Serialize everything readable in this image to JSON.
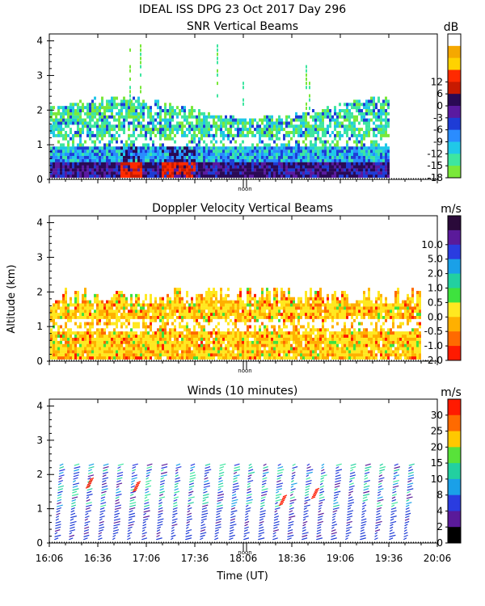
{
  "header": {
    "title": "IDEAL ISS DPG  23 Oct 2017 Day 296"
  },
  "x_axis": {
    "ticks": [
      "16:06",
      "16:36",
      "17:06",
      "17:36",
      "18:06",
      "18:36",
      "19:06",
      "19:36",
      "20:06"
    ],
    "label": "Time (UT)",
    "noon_label": "noon",
    "range_minutes": [
      966,
      1206
    ],
    "noon_minute": 1087
  },
  "y_axis": {
    "label": "Altitude (km)",
    "ticks": [
      "0",
      "1",
      "2",
      "3",
      "4"
    ],
    "range_km": [
      0,
      4.2
    ]
  },
  "chart_data": [
    {
      "type": "heatmap",
      "title": "SNR Vertical Beams",
      "colorbar": {
        "unit": "dB",
        "labels": [
          "12",
          "6",
          "0",
          "-3",
          "-6",
          "-9",
          "-12",
          "-15",
          "-18"
        ],
        "colors": [
          "#ffffff",
          "#f5a800",
          "#ffd200",
          "#ff2a00",
          "#c81a00",
          "#2a0a55",
          "#5a1aa0",
          "#1e3cd6",
          "#2a8cff",
          "#20c8e8",
          "#3ee6a0",
          "#7ae83a"
        ]
      }
    },
    {
      "type": "heatmap",
      "title": "Doppler Velocity Vertical Beams",
      "colorbar": {
        "unit": "m/s",
        "labels": [
          "10.0",
          "5.0",
          "2.0",
          "1.0",
          "0.5",
          "0.0",
          "-0.5",
          "-1.0",
          "-2.0"
        ],
        "colors": [
          "#2a0a3a",
          "#5a1a9a",
          "#2a3ce0",
          "#1aa0e8",
          "#22d0a0",
          "#3ee23e",
          "#ffe820",
          "#ffb000",
          "#ff6a00",
          "#ff1a00"
        ]
      }
    },
    {
      "type": "wind_barbs",
      "title": "Winds (10 minutes)",
      "colorbar": {
        "unit": "m/s",
        "labels": [
          "30",
          "25",
          "20",
          "15",
          "10",
          "8",
          "4",
          "2",
          "0"
        ],
        "colors": [
          "#ff1a00",
          "#ff6a00",
          "#ffc800",
          "#58e23a",
          "#22d0a0",
          "#1aa0e8",
          "#2a3ce0",
          "#5a1a9a",
          "#000000"
        ]
      }
    }
  ]
}
